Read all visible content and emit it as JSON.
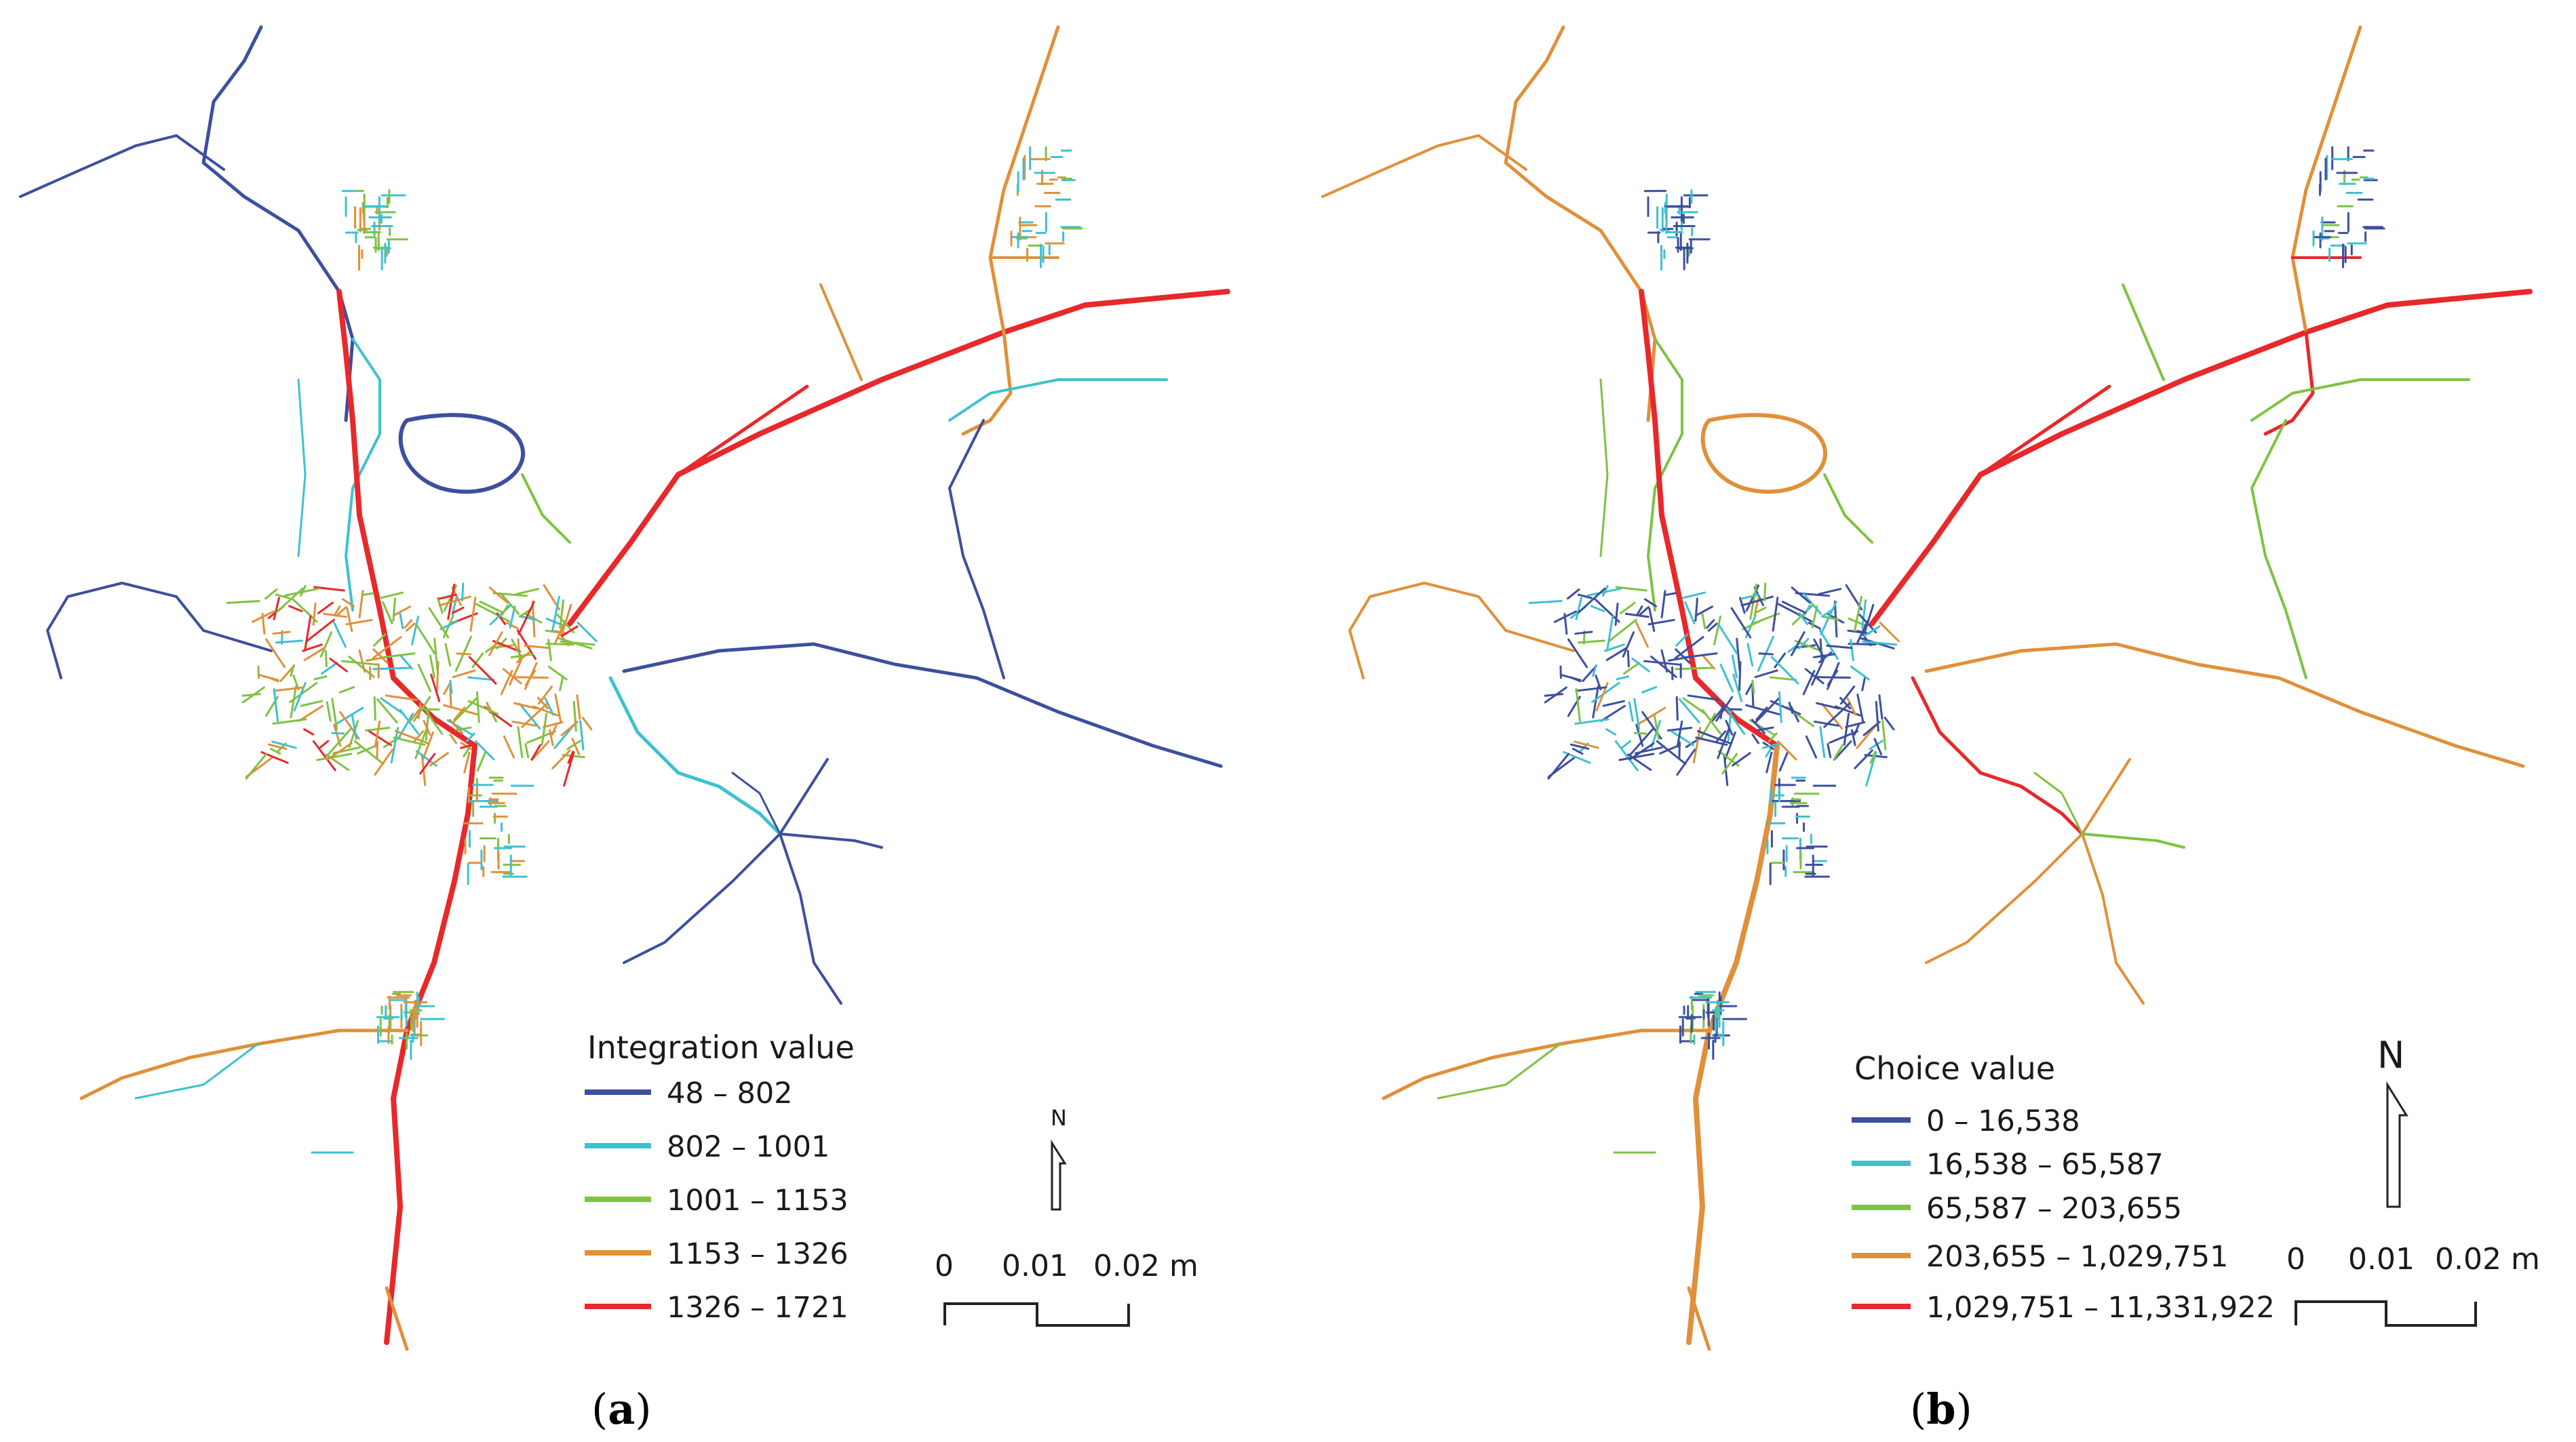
{
  "panels": [
    {
      "id": "a",
      "caption_letter": "a",
      "legend": {
        "title": "Integration value",
        "items": [
          {
            "label": "48 – 802",
            "color": "#3d4f9e"
          },
          {
            "label": "802 – 1001",
            "color": "#3dc1d1"
          },
          {
            "label": "1001 – 1153",
            "color": "#7fc241"
          },
          {
            "label": "1153 – 1326",
            "color": "#e0903a"
          },
          {
            "label": "1326 – 1721",
            "color": "#e8282a"
          }
        ]
      },
      "north_label": "N",
      "scale_labels": [
        "0",
        "0.01",
        "0.02 m"
      ]
    },
    {
      "id": "b",
      "caption_letter": "b",
      "legend": {
        "title": "Choice value",
        "items": [
          {
            "label": "0 – 16,538",
            "color": "#3d4f9e"
          },
          {
            "label": "16,538 – 65,587",
            "color": "#3dc1d1"
          },
          {
            "label": "65,587 – 203,655",
            "color": "#7fc241"
          },
          {
            "label": "203,655 – 1,029,751",
            "color": "#e0903a"
          },
          {
            "label": "1,029,751 – 11,331,922",
            "color": "#e8282a"
          }
        ]
      },
      "north_label": "N",
      "scale_labels": [
        "0",
        "0.01",
        "0.02 m"
      ]
    }
  ]
}
